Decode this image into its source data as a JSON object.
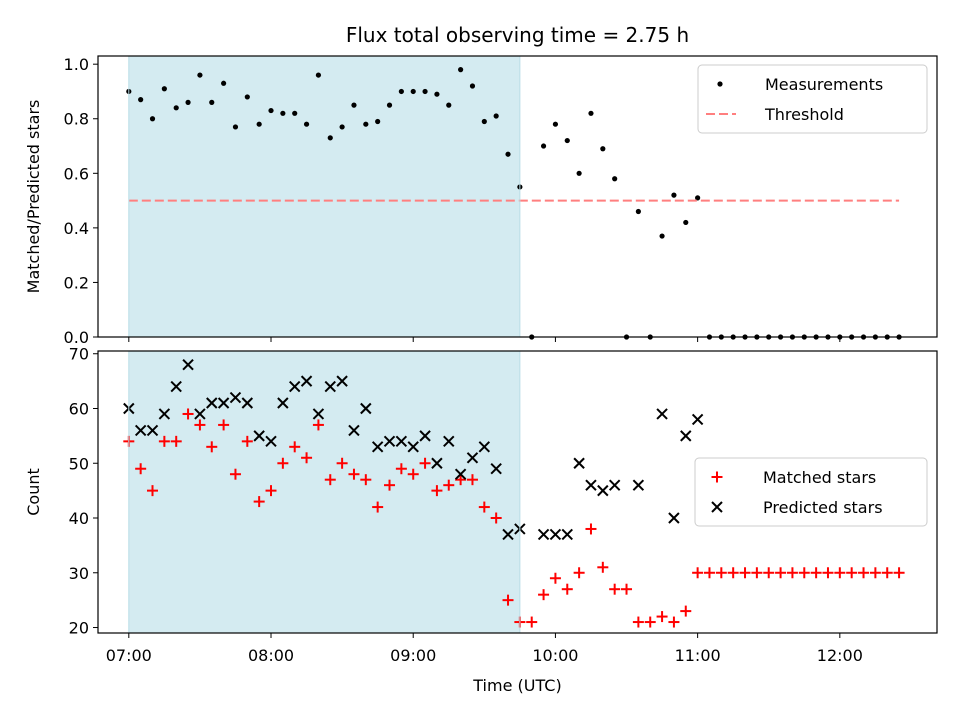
{
  "chart_data": [
    {
      "type": "scatter",
      "title": "Flux total observing time = 2.75 h",
      "xlabel": "",
      "ylabel": "Matched/Predicted stars",
      "x_unit": "time (UTC)",
      "xlim": [
        "06:47",
        "12:41"
      ],
      "ylim": [
        0,
        1.03
      ],
      "yticks": [
        "0.0",
        "0.2",
        "0.4",
        "0.6",
        "0.8",
        "1.0"
      ],
      "xticks": [
        "07:00",
        "08:00",
        "09:00",
        "10:00",
        "11:00",
        "12:00"
      ],
      "shaded_interval": {
        "start": "07:00",
        "end": "09:45",
        "color": "#d4ebf1"
      },
      "legend": {
        "placement": "top-right",
        "entries": [
          "Measurements",
          "Threshold"
        ]
      },
      "series": [
        {
          "name": "Measurements",
          "marker": "dot",
          "color": "#000000",
          "x": [
            "07:00",
            "07:05",
            "07:10",
            "07:15",
            "07:20",
            "07:25",
            "07:30",
            "07:35",
            "07:40",
            "07:45",
            "07:50",
            "07:55",
            "08:00",
            "08:05",
            "08:10",
            "08:15",
            "08:20",
            "08:25",
            "08:30",
            "08:35",
            "08:40",
            "08:45",
            "08:50",
            "08:55",
            "09:00",
            "09:05",
            "09:10",
            "09:15",
            "09:20",
            "09:25",
            "09:30",
            "09:35",
            "09:40",
            "09:45",
            "09:50",
            "09:55",
            "10:00",
            "10:05",
            "10:10",
            "10:15",
            "10:20",
            "10:25",
            "10:30",
            "10:35",
            "10:40",
            "10:45",
            "10:50",
            "10:55",
            "11:00",
            "11:05",
            "11:10",
            "11:15",
            "11:20",
            "11:25",
            "11:30",
            "11:35",
            "11:40",
            "11:45",
            "11:50",
            "11:55",
            "12:00",
            "12:05",
            "12:10",
            "12:15",
            "12:20",
            "12:25"
          ],
          "y": [
            0.9,
            0.87,
            0.8,
            0.91,
            0.84,
            0.86,
            0.96,
            0.86,
            0.93,
            0.77,
            0.88,
            0.78,
            0.83,
            0.82,
            0.82,
            0.78,
            0.96,
            0.73,
            0.77,
            0.85,
            0.78,
            0.79,
            0.85,
            0.9,
            0.9,
            0.9,
            0.89,
            0.85,
            0.98,
            0.92,
            0.79,
            0.81,
            0.67,
            0.55,
            0.0,
            0.7,
            0.78,
            0.72,
            0.6,
            0.82,
            0.69,
            0.58,
            0.0,
            0.46,
            0.0,
            0.37,
            0.52,
            0.42,
            0.51,
            0.0,
            0.0,
            0.0,
            0.0,
            0.0,
            0.0,
            0.0,
            0.0,
            0.0,
            0.0,
            0.0,
            0.0,
            0.0,
            0.0,
            0.0,
            0.0,
            0.0
          ]
        },
        {
          "name": "Threshold",
          "style": "dashed-line",
          "color": "#ff7f7f",
          "x": [
            "07:00",
            "12:25"
          ],
          "y": [
            0.5,
            0.5
          ]
        }
      ]
    },
    {
      "type": "scatter",
      "title": "",
      "xlabel": "Time (UTC)",
      "ylabel": "Count",
      "x_unit": "time (UTC)",
      "xlim": [
        "06:47",
        "12:41"
      ],
      "ylim": [
        19,
        70.5
      ],
      "yticks": [
        "20",
        "30",
        "40",
        "50",
        "60",
        "70"
      ],
      "xticks": [
        "07:00",
        "08:00",
        "09:00",
        "10:00",
        "11:00",
        "12:00"
      ],
      "shaded_interval": {
        "start": "07:00",
        "end": "09:45",
        "color": "#d4ebf1"
      },
      "legend": {
        "placement": "center-right",
        "entries": [
          "Matched stars",
          "Predicted stars"
        ]
      },
      "series": [
        {
          "name": "Matched stars",
          "marker": "plus",
          "color": "#ff0000",
          "x": [
            "07:00",
            "07:05",
            "07:10",
            "07:15",
            "07:20",
            "07:25",
            "07:30",
            "07:35",
            "07:40",
            "07:45",
            "07:50",
            "07:55",
            "08:00",
            "08:05",
            "08:10",
            "08:15",
            "08:20",
            "08:25",
            "08:30",
            "08:35",
            "08:40",
            "08:45",
            "08:50",
            "08:55",
            "09:00",
            "09:05",
            "09:10",
            "09:15",
            "09:20",
            "09:25",
            "09:30",
            "09:35",
            "09:40",
            "09:45",
            "09:50",
            "09:55",
            "10:00",
            "10:05",
            "10:10",
            "10:15",
            "10:20",
            "10:25",
            "10:30",
            "10:35",
            "10:40",
            "10:45",
            "10:50",
            "10:55",
            "11:00",
            "11:05",
            "11:10",
            "11:15",
            "11:20",
            "11:25",
            "11:30",
            "11:35",
            "11:40",
            "11:45",
            "11:50",
            "11:55",
            "12:00",
            "12:05",
            "12:10",
            "12:15",
            "12:20",
            "12:25"
          ],
          "y": [
            54,
            49,
            45,
            54,
            54,
            59,
            57,
            53,
            57,
            48,
            54,
            43,
            45,
            50,
            53,
            51,
            57,
            47,
            50,
            48,
            47,
            42,
            46,
            49,
            48,
            50,
            45,
            46,
            47,
            47,
            42,
            40,
            25,
            21,
            21,
            26,
            29,
            27,
            30,
            38,
            31,
            27,
            27,
            21,
            21,
            22,
            21,
            23,
            30,
            30,
            30,
            30,
            30,
            30,
            30,
            30,
            30,
            30,
            30,
            30,
            30,
            30,
            30,
            30,
            30,
            30
          ]
        },
        {
          "name": "Predicted stars",
          "marker": "x",
          "color": "#000000",
          "x": [
            "07:00",
            "07:05",
            "07:10",
            "07:15",
            "07:20",
            "07:25",
            "07:30",
            "07:35",
            "07:40",
            "07:45",
            "07:50",
            "07:55",
            "08:00",
            "08:05",
            "08:10",
            "08:15",
            "08:20",
            "08:25",
            "08:30",
            "08:35",
            "08:40",
            "08:45",
            "08:50",
            "08:55",
            "09:00",
            "09:05",
            "09:10",
            "09:15",
            "09:20",
            "09:25",
            "09:30",
            "09:35",
            "09:40",
            "09:45",
            "09:55",
            "10:00",
            "10:05",
            "10:10",
            "10:15",
            "10:20",
            "10:25",
            "10:35",
            "10:45",
            "10:50",
            "10:55",
            "11:00"
          ],
          "y": [
            60,
            56,
            56,
            59,
            64,
            68,
            59,
            61,
            61,
            62,
            61,
            55,
            54,
            61,
            64,
            65,
            59,
            64,
            65,
            56,
            60,
            53,
            54,
            54,
            53,
            55,
            50,
            54,
            48,
            51,
            53,
            49,
            37,
            38,
            37,
            37,
            37,
            50,
            46,
            45,
            46,
            46,
            59,
            40,
            55,
            58
          ]
        }
      ]
    }
  ]
}
